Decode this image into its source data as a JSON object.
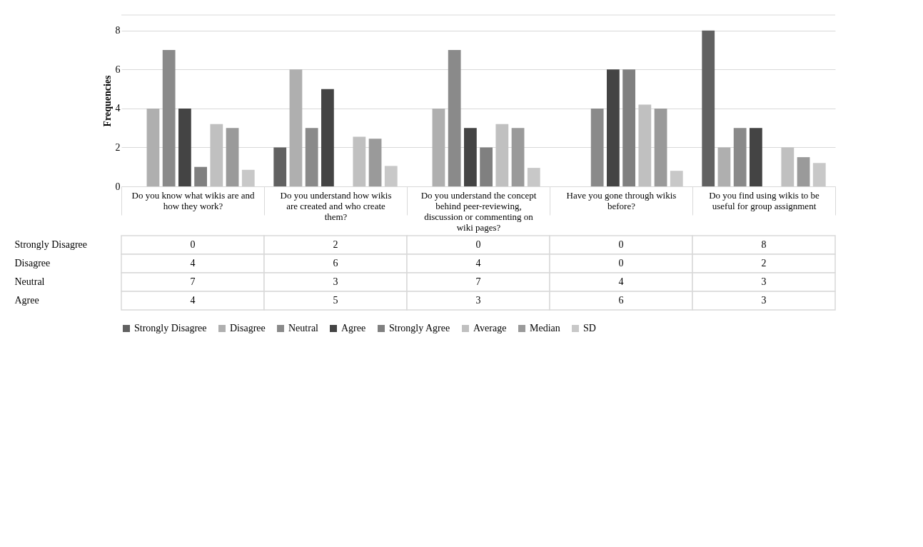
{
  "chart_data": {
    "type": "bar",
    "ylabel": "Frequencies",
    "categories": [
      "Do you know what wikis are and how they work?",
      "Do you understand how wikis are created and who create them?",
      "Do you understand the concept behind peer-reviewing, discussion or commenting on wiki pages?",
      "Have you gone through wikis before?",
      "Do you find using wikis to be useful for group assignment"
    ],
    "series": [
      {
        "name": "Strongly Disagree",
        "color": "#616161",
        "values": [
          0,
          2,
          0,
          0,
          8
        ],
        "value_labels": [
          "0",
          "2",
          "0",
          "0",
          "8"
        ]
      },
      {
        "name": "Disagree",
        "color": "#afafaf",
        "values": [
          4,
          6,
          4,
          0,
          2
        ],
        "value_labels": [
          "4",
          "6",
          "4",
          "0",
          "2"
        ]
      },
      {
        "name": "Neutral",
        "color": "#8a8a8a",
        "values": [
          7,
          3,
          7,
          4,
          3
        ],
        "value_labels": [
          "7",
          "3",
          "7",
          "4",
          "3"
        ]
      },
      {
        "name": "Agree",
        "color": "#444444",
        "values": [
          4,
          5,
          3,
          6,
          3
        ],
        "value_labels": [
          "4",
          "5",
          "3",
          "6",
          "3"
        ]
      },
      {
        "name": "Strongly Agree",
        "color": "#808080",
        "values": [
          1,
          0,
          2,
          6,
          0
        ]
      },
      {
        "name": "Average",
        "color": "#c0c0c0",
        "values": [
          3.2,
          2.55,
          3.2,
          4.2,
          2
        ]
      },
      {
        "name": "Median",
        "color": "#9a9a9a",
        "values": [
          3,
          2.45,
          3,
          4,
          1.5
        ]
      },
      {
        "name": "SD",
        "color": "#c8c8c8",
        "values": [
          0.85,
          1.05,
          0.95,
          0.8,
          1.2
        ]
      }
    ],
    "ylim": [
      0,
      8.8
    ],
    "yticks": [
      0,
      2,
      4,
      6,
      8
    ],
    "grid": "y",
    "legend": "bottom"
  }
}
